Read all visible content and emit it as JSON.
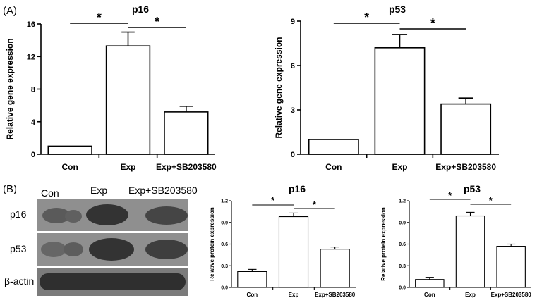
{
  "panels": {
    "a": "(A)",
    "b": "(B)"
  },
  "blot": {
    "lanes": [
      "Con",
      "Exp",
      "Exp+SB203580"
    ],
    "rows": [
      "p16",
      "p53",
      "β-actin"
    ]
  },
  "chart_data": [
    {
      "type": "bar",
      "title": "p16",
      "ylabel": "Relative gene expression",
      "categories": [
        "Con",
        "Exp",
        "Exp+SB203580"
      ],
      "values": [
        1.0,
        13.3,
        5.2
      ],
      "errors": [
        0,
        1.7,
        0.7
      ],
      "ylim": [
        0,
        16
      ],
      "yticks": [
        "0",
        "4",
        "8",
        "12",
        "16"
      ],
      "significance": [
        "*",
        "*"
      ]
    },
    {
      "type": "bar",
      "title": "p53",
      "ylabel": "Relative gene expression",
      "categories": [
        "Con",
        "Exp",
        "Exp+SB203580"
      ],
      "values": [
        1.0,
        7.2,
        3.4
      ],
      "errors": [
        0,
        0.9,
        0.4
      ],
      "ylim": [
        0,
        9
      ],
      "yticks": [
        "0",
        "3",
        "6",
        "9"
      ],
      "significance": [
        "*",
        "*"
      ]
    },
    {
      "type": "bar",
      "title": "p16",
      "ylabel": "Relative protein expression",
      "categories": [
        "Con",
        "Exp",
        "Exp+SB203580"
      ],
      "values": [
        0.22,
        0.98,
        0.53
      ],
      "errors": [
        0.03,
        0.05,
        0.03
      ],
      "ylim": [
        0,
        1.2
      ],
      "yticks": [
        "0.0",
        "0.3",
        "0.6",
        "0.9",
        "1.2"
      ],
      "significance": [
        "*",
        "*"
      ]
    },
    {
      "type": "bar",
      "title": "p53",
      "ylabel": "Relative protein expression",
      "categories": [
        "Con",
        "Exp",
        "Exp+SB203580"
      ],
      "values": [
        0.11,
        0.99,
        0.57
      ],
      "errors": [
        0.03,
        0.05,
        0.03
      ],
      "ylim": [
        0,
        1.2
      ],
      "yticks": [
        "0.0",
        "0.3",
        "0.6",
        "0.9",
        "1.2"
      ],
      "significance": [
        "*",
        "*"
      ]
    }
  ]
}
